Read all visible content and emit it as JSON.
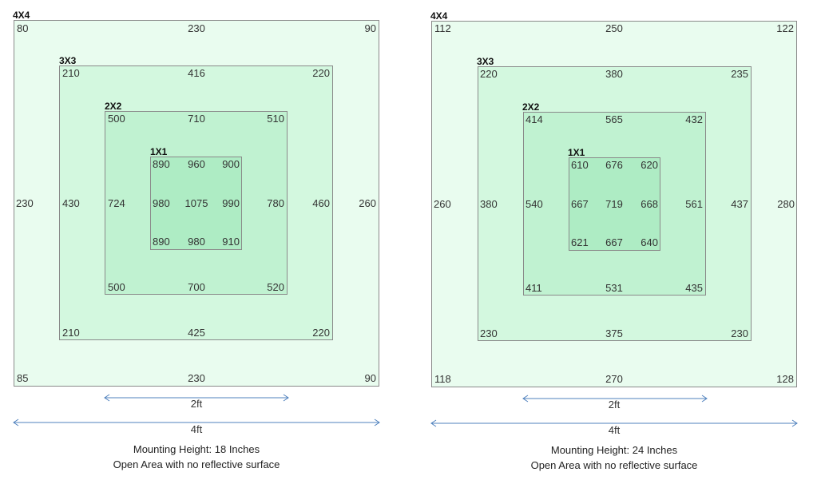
{
  "panels": [
    {
      "squares": {
        "s4": {
          "label": "4X4",
          "tl": "80",
          "tc": "230",
          "tr": "90",
          "ml": "230",
          "mr": "260",
          "bl": "85",
          "bc": "230",
          "br": "90"
        },
        "s3": {
          "label": "3X3",
          "tl": "210",
          "tc": "416",
          "tr": "220",
          "ml": "430",
          "mr": "460",
          "bl": "210",
          "bc": "425",
          "br": "220"
        },
        "s2": {
          "label": "2X2",
          "tl": "500",
          "tc": "710",
          "tr": "510",
          "ml": "724",
          "mr": "780",
          "bl": "500",
          "bc": "700",
          "br": "520"
        },
        "s1": {
          "label": "1X1",
          "tl": "890",
          "tc": "960",
          "tr": "900",
          "ml": "980",
          "mc": "1075",
          "mr": "990",
          "bl": "890",
          "bc": "980",
          "br": "910"
        }
      },
      "dim_2ft": "2ft",
      "dim_4ft": "4ft",
      "caption_line1": "Mounting Height:  18 Inches",
      "caption_line2": "Open Area with no reflective surface"
    },
    {
      "squares": {
        "s4": {
          "label": "4X4",
          "tl": "112",
          "tc": "250",
          "tr": "122",
          "ml": "260",
          "mr": "280",
          "bl": "118",
          "bc": "270",
          "br": "128"
        },
        "s3": {
          "label": "3X3",
          "tl": "220",
          "tc": "380",
          "tr": "235",
          "ml": "380",
          "mr": "437",
          "bl": "230",
          "bc": "375",
          "br": "230"
        },
        "s2": {
          "label": "2X2",
          "tl": "414",
          "tc": "565",
          "tr": "432",
          "ml": "540",
          "mr": "561",
          "bl": "411",
          "bc": "531",
          "br": "435"
        },
        "s1": {
          "label": "1X1",
          "tl": "610",
          "tc": "676",
          "tr": "620",
          "ml": "667",
          "mc": "719",
          "mr": "668",
          "bl": "621",
          "bc": "667",
          "br": "640"
        }
      },
      "dim_2ft": "2ft",
      "dim_4ft": "4ft",
      "caption_line1": "Mounting Height:  24 Inches",
      "caption_line2": "Open Area with no reflective surface"
    }
  ],
  "colors": {
    "s4_fill": "#e9fcef",
    "s3_fill": "#d3f8df",
    "s2_fill": "#c0f2d1",
    "s1_fill": "#aeecc4",
    "arrow": "#4f81bd"
  }
}
